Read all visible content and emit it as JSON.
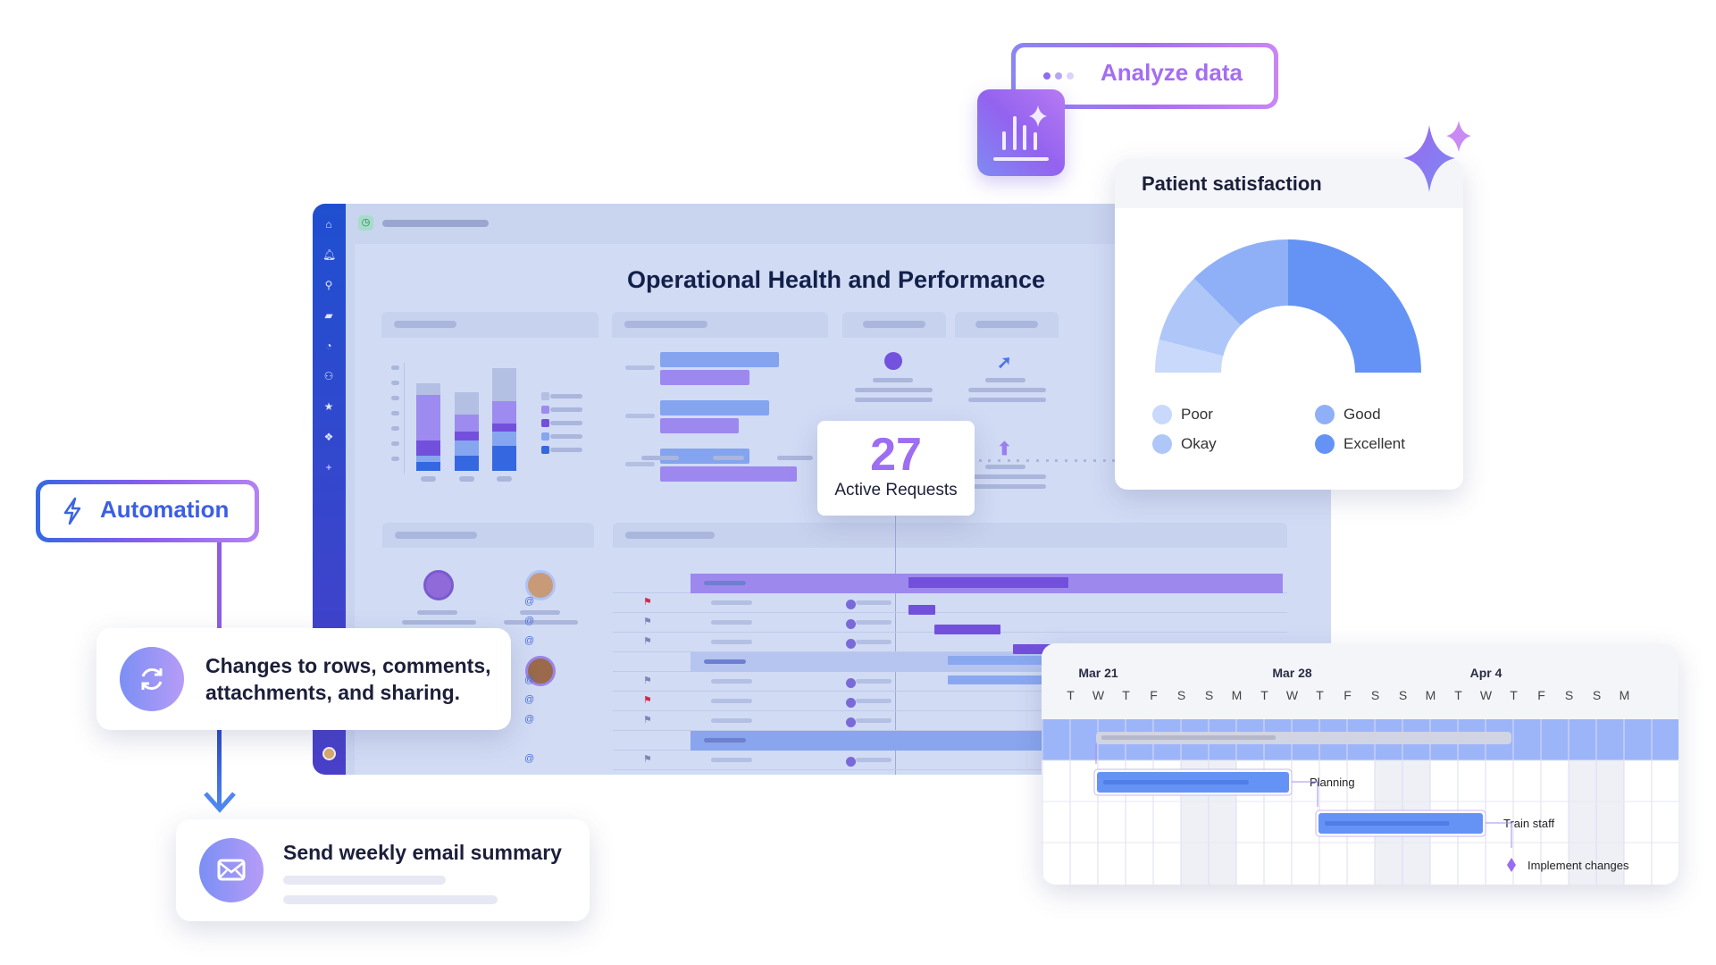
{
  "dashboard": {
    "title": "Operational Health and Performance",
    "active_requests": {
      "value": "27",
      "label": "Active Requests"
    }
  },
  "analyze": {
    "label": "Analyze data",
    "icon": "bar-chart-sparkle-icon"
  },
  "automation": {
    "label": "Automation",
    "icon": "lightning-bolt-icon"
  },
  "trigger": {
    "text_line1": "Changes to rows, comments,",
    "text_line2": "attachments, and sharing.",
    "icon": "refresh-icon"
  },
  "action": {
    "text": "Send weekly email summary",
    "icon": "envelope-icon"
  },
  "satisfaction": {
    "title": "Patient satisfaction",
    "legend": [
      {
        "label": "Poor",
        "color": "#c9d9fb"
      },
      {
        "label": "Good",
        "color": "#8fb0f6"
      },
      {
        "label": "Okay",
        "color": "#aec7f8"
      },
      {
        "label": "Excellent",
        "color": "#6593f5"
      }
    ]
  },
  "chart_data": {
    "type": "pie",
    "title": "Patient satisfaction",
    "style": "half-donut",
    "categories": [
      "Poor",
      "Okay",
      "Good",
      "Excellent"
    ],
    "values": [
      8,
      17,
      25,
      50
    ],
    "colors": [
      "#c9d9fb",
      "#aec7f8",
      "#8fb0f6",
      "#6593f5"
    ],
    "legend": "bottom"
  },
  "gantt": {
    "date_labels": [
      "Mar 21",
      "Mar 28",
      "Apr 4"
    ],
    "days": [
      "T",
      "W",
      "T",
      "F",
      "S",
      "S",
      "M",
      "T",
      "W",
      "T",
      "F",
      "S",
      "S",
      "M",
      "T",
      "W",
      "T",
      "F",
      "S",
      "S",
      "M"
    ],
    "tasks": [
      {
        "label": "Planning",
        "start": "Mar 21",
        "end": "Mar 27"
      },
      {
        "label": "Train staff",
        "start": "Mar 29",
        "end": "Apr 3"
      },
      {
        "label": "Implement changes",
        "milestone": "Apr 5"
      }
    ]
  },
  "colors": {
    "accent_purple": "#9b6bf2",
    "accent_blue": "#3f63e0",
    "sidebar": "#2e4fd0"
  }
}
